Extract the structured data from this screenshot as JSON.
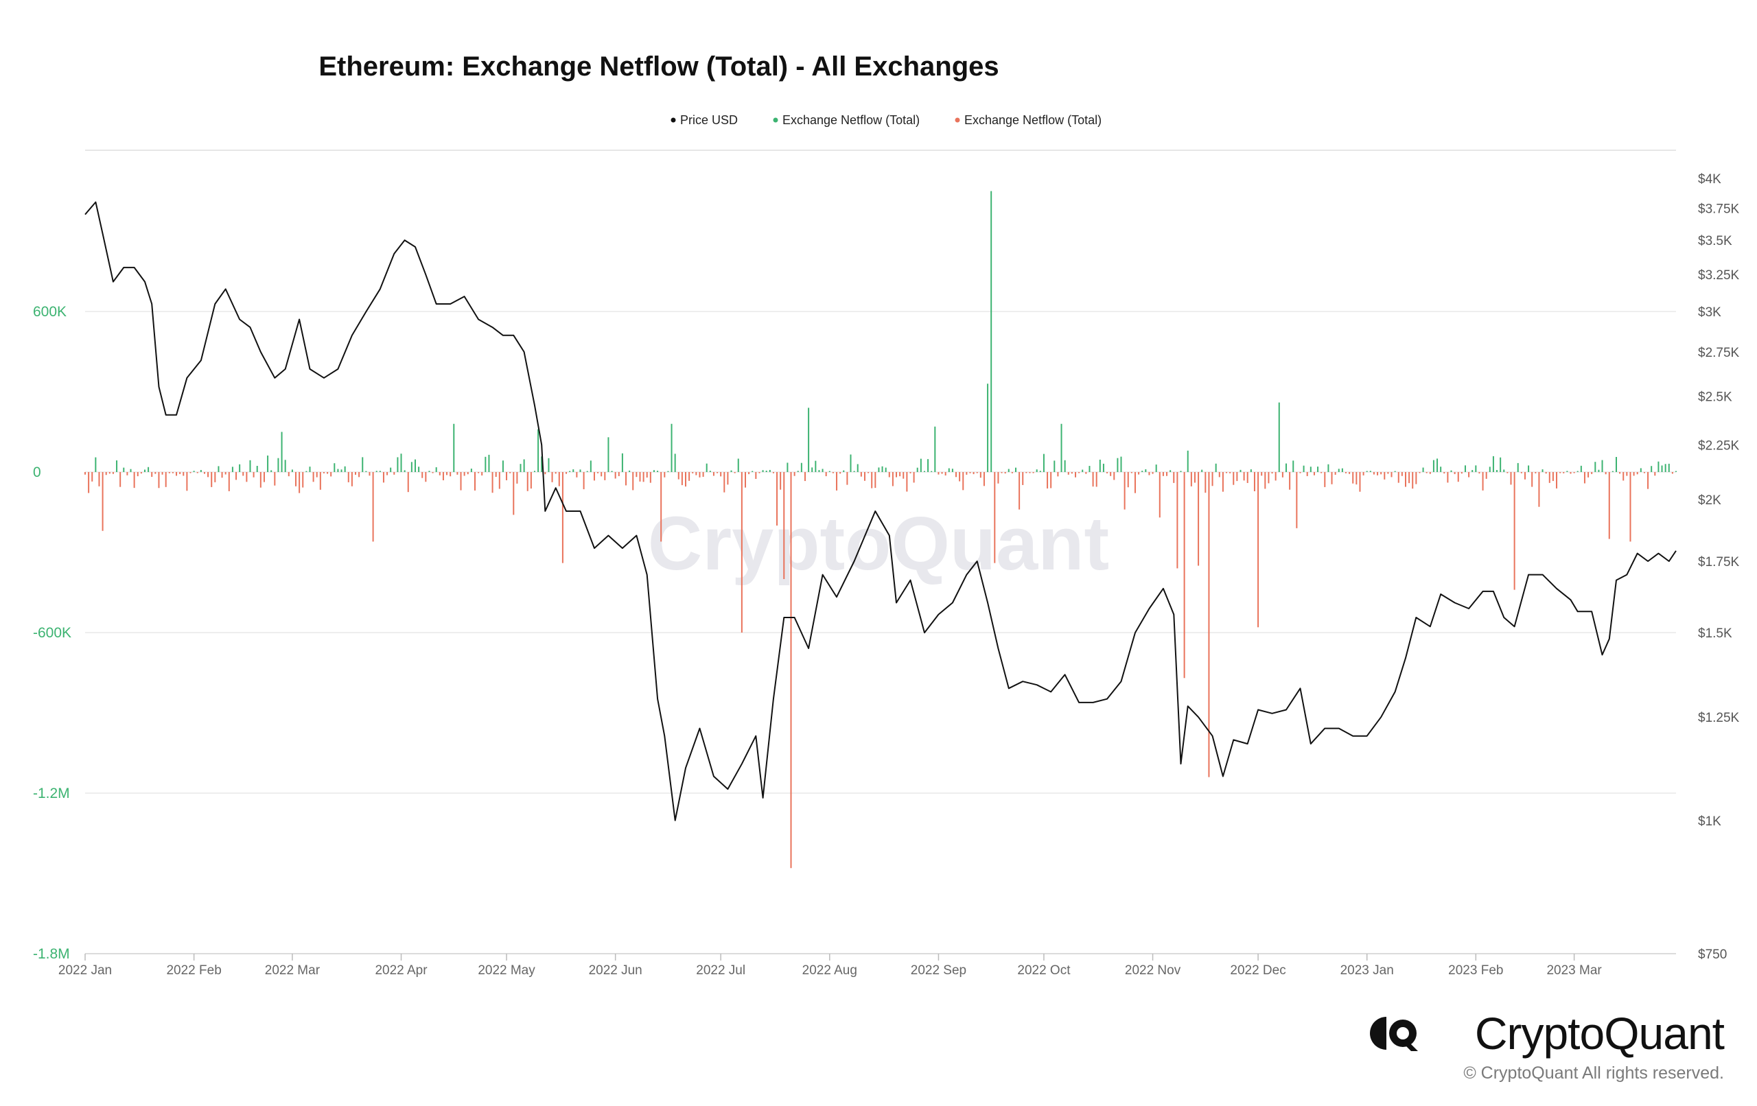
{
  "chart_data": {
    "type": "line+bar",
    "title": "Ethereum: Exchange Netflow (Total) - All Exchanges",
    "legend": [
      {
        "label": "Price USD",
        "color": "#111111"
      },
      {
        "label": "Exchange Netflow (Total)",
        "color": "#3cb371"
      },
      {
        "label": "Exchange Netflow (Total)",
        "color": "#e9735b"
      }
    ],
    "legend_position": "top-center",
    "watermark": "CryptoQuant",
    "x_ticks": [
      "2022 Jan",
      "2022 Feb",
      "2022 Mar",
      "2022 Apr",
      "2022 May",
      "2022 Jun",
      "2022 Jul",
      "2022 Aug",
      "2022 Sep",
      "2022 Oct",
      "2022 Nov",
      "2022 Dec",
      "2023 Jan",
      "2023 Feb",
      "2023 Mar"
    ],
    "x_tick_dates": [
      "2022-01-01",
      "2022-02-01",
      "2022-03-01",
      "2022-04-01",
      "2022-05-01",
      "2022-06-01",
      "2022-07-01",
      "2022-08-01",
      "2022-09-01",
      "2022-10-01",
      "2022-11-01",
      "2022-12-01",
      "2023-01-01",
      "2023-02-01",
      "2023-03-01"
    ],
    "x_range": [
      "2022-01-01",
      "2023-03-30"
    ],
    "left_axis": {
      "ticks": [
        "600K",
        "0",
        "-600K",
        "-1.2M",
        "-1.8M"
      ],
      "tick_values": [
        600000,
        0,
        -600000,
        -1200000,
        -1800000
      ],
      "range": [
        -1800000,
        1200000
      ],
      "color": "#3cb371"
    },
    "right_axis": {
      "scale": "log",
      "ticks": [
        "$4K",
        "$3.75K",
        "$3.5K",
        "$3.25K",
        "$3K",
        "$2.75K",
        "$2.5K",
        "$2.25K",
        "$2K",
        "$1.75K",
        "$1.5K",
        "$1.25K",
        "$1K",
        "$750"
      ],
      "tick_values": [
        4000,
        3750,
        3500,
        3250,
        3000,
        2750,
        2500,
        2250,
        2000,
        1750,
        1500,
        1250,
        1000,
        750
      ],
      "range": [
        750,
        4000
      ]
    },
    "grid": true,
    "price_series": {
      "name": "Price USD",
      "points": [
        [
          "2022-01-01",
          3700
        ],
        [
          "2022-01-04",
          3800
        ],
        [
          "2022-01-06",
          3550
        ],
        [
          "2022-01-09",
          3200
        ],
        [
          "2022-01-12",
          3300
        ],
        [
          "2022-01-15",
          3300
        ],
        [
          "2022-01-18",
          3200
        ],
        [
          "2022-01-20",
          3050
        ],
        [
          "2022-01-22",
          2550
        ],
        [
          "2022-01-24",
          2400
        ],
        [
          "2022-01-27",
          2400
        ],
        [
          "2022-01-30",
          2600
        ],
        [
          "2022-02-03",
          2700
        ],
        [
          "2022-02-07",
          3050
        ],
        [
          "2022-02-10",
          3150
        ],
        [
          "2022-02-14",
          2950
        ],
        [
          "2022-02-17",
          2900
        ],
        [
          "2022-02-20",
          2750
        ],
        [
          "2022-02-24",
          2600
        ],
        [
          "2022-02-27",
          2650
        ],
        [
          "2022-03-03",
          2950
        ],
        [
          "2022-03-06",
          2650
        ],
        [
          "2022-03-10",
          2600
        ],
        [
          "2022-03-14",
          2650
        ],
        [
          "2022-03-18",
          2850
        ],
        [
          "2022-03-22",
          3000
        ],
        [
          "2022-03-26",
          3150
        ],
        [
          "2022-03-30",
          3400
        ],
        [
          "2022-04-02",
          3500
        ],
        [
          "2022-04-05",
          3450
        ],
        [
          "2022-04-08",
          3250
        ],
        [
          "2022-04-11",
          3050
        ],
        [
          "2022-04-15",
          3050
        ],
        [
          "2022-04-19",
          3100
        ],
        [
          "2022-04-23",
          2950
        ],
        [
          "2022-04-27",
          2900
        ],
        [
          "2022-04-30",
          2850
        ],
        [
          "2022-05-03",
          2850
        ],
        [
          "2022-05-06",
          2750
        ],
        [
          "2022-05-09",
          2450
        ],
        [
          "2022-05-11",
          2250
        ],
        [
          "2022-05-12",
          1950
        ],
        [
          "2022-05-15",
          2050
        ],
        [
          "2022-05-18",
          1950
        ],
        [
          "2022-05-22",
          1950
        ],
        [
          "2022-05-26",
          1800
        ],
        [
          "2022-05-30",
          1850
        ],
        [
          "2022-06-03",
          1800
        ],
        [
          "2022-06-07",
          1850
        ],
        [
          "2022-06-10",
          1700
        ],
        [
          "2022-06-13",
          1300
        ],
        [
          "2022-06-15",
          1200
        ],
        [
          "2022-06-18",
          1000
        ],
        [
          "2022-06-21",
          1120
        ],
        [
          "2022-06-25",
          1220
        ],
        [
          "2022-06-29",
          1100
        ],
        [
          "2022-07-03",
          1070
        ],
        [
          "2022-07-07",
          1130
        ],
        [
          "2022-07-11",
          1200
        ],
        [
          "2022-07-13",
          1050
        ],
        [
          "2022-07-16",
          1300
        ],
        [
          "2022-07-19",
          1550
        ],
        [
          "2022-07-22",
          1550
        ],
        [
          "2022-07-26",
          1450
        ],
        [
          "2022-07-30",
          1700
        ],
        [
          "2022-08-03",
          1620
        ],
        [
          "2022-08-08",
          1750
        ],
        [
          "2022-08-14",
          1950
        ],
        [
          "2022-08-18",
          1850
        ],
        [
          "2022-08-20",
          1600
        ],
        [
          "2022-08-24",
          1680
        ],
        [
          "2022-08-28",
          1500
        ],
        [
          "2022-09-01",
          1560
        ],
        [
          "2022-09-05",
          1600
        ],
        [
          "2022-09-09",
          1700
        ],
        [
          "2022-09-12",
          1750
        ],
        [
          "2022-09-15",
          1600
        ],
        [
          "2022-09-18",
          1450
        ],
        [
          "2022-09-21",
          1330
        ],
        [
          "2022-09-25",
          1350
        ],
        [
          "2022-09-29",
          1340
        ],
        [
          "2022-10-03",
          1320
        ],
        [
          "2022-10-07",
          1370
        ],
        [
          "2022-10-11",
          1290
        ],
        [
          "2022-10-15",
          1290
        ],
        [
          "2022-10-19",
          1300
        ],
        [
          "2022-10-23",
          1350
        ],
        [
          "2022-10-27",
          1500
        ],
        [
          "2022-10-31",
          1580
        ],
        [
          "2022-11-04",
          1650
        ],
        [
          "2022-11-07",
          1560
        ],
        [
          "2022-11-09",
          1130
        ],
        [
          "2022-11-11",
          1280
        ],
        [
          "2022-11-14",
          1250
        ],
        [
          "2022-11-18",
          1200
        ],
        [
          "2022-11-21",
          1100
        ],
        [
          "2022-11-24",
          1190
        ],
        [
          "2022-11-28",
          1180
        ],
        [
          "2022-12-01",
          1270
        ],
        [
          "2022-12-05",
          1260
        ],
        [
          "2022-12-09",
          1270
        ],
        [
          "2022-12-13",
          1330
        ],
        [
          "2022-12-16",
          1180
        ],
        [
          "2022-12-20",
          1220
        ],
        [
          "2022-12-24",
          1220
        ],
        [
          "2022-12-28",
          1200
        ],
        [
          "2023-01-01",
          1200
        ],
        [
          "2023-01-05",
          1250
        ],
        [
          "2023-01-09",
          1320
        ],
        [
          "2023-01-12",
          1420
        ],
        [
          "2023-01-15",
          1550
        ],
        [
          "2023-01-19",
          1520
        ],
        [
          "2023-01-22",
          1630
        ],
        [
          "2023-01-26",
          1600
        ],
        [
          "2023-01-30",
          1580
        ],
        [
          "2023-02-03",
          1640
        ],
        [
          "2023-02-06",
          1640
        ],
        [
          "2023-02-09",
          1550
        ],
        [
          "2023-02-12",
          1520
        ],
        [
          "2023-02-16",
          1700
        ],
        [
          "2023-02-20",
          1700
        ],
        [
          "2023-02-24",
          1650
        ],
        [
          "2023-02-28",
          1610
        ],
        [
          "2023-03-02",
          1570
        ],
        [
          "2023-03-06",
          1570
        ],
        [
          "2023-03-09",
          1430
        ],
        [
          "2023-03-11",
          1480
        ],
        [
          "2023-03-13",
          1680
        ],
        [
          "2023-03-16",
          1700
        ],
        [
          "2023-03-19",
          1780
        ],
        [
          "2023-03-22",
          1750
        ],
        [
          "2023-03-25",
          1780
        ],
        [
          "2023-03-28",
          1750
        ],
        [
          "2023-03-30",
          1790
        ]
      ]
    },
    "netflow_series": {
      "name": "Exchange Netflow (Total)",
      "positive_color": "#3cb371",
      "negative_color": "#e9735b",
      "notable_bars": [
        [
          "2022-01-06",
          -220000
        ],
        [
          "2022-02-26",
          150000
        ],
        [
          "2022-03-24",
          -260000
        ],
        [
          "2022-04-16",
          180000
        ],
        [
          "2022-05-03",
          -160000
        ],
        [
          "2022-05-10",
          160000
        ],
        [
          "2022-05-17",
          -340000
        ],
        [
          "2022-05-30",
          130000
        ],
        [
          "2022-06-14",
          -260000
        ],
        [
          "2022-06-17",
          180000
        ],
        [
          "2022-07-07",
          -600000
        ],
        [
          "2022-07-17",
          -200000
        ],
        [
          "2022-07-19",
          -400000
        ],
        [
          "2022-07-21",
          -1480000
        ],
        [
          "2022-07-26",
          240000
        ],
        [
          "2022-08-31",
          170000
        ],
        [
          "2022-09-15",
          330000
        ],
        [
          "2022-09-16",
          1050000
        ],
        [
          "2022-09-17",
          -340000
        ],
        [
          "2022-09-24",
          -140000
        ],
        [
          "2022-10-06",
          180000
        ],
        [
          "2022-10-24",
          -140000
        ],
        [
          "2022-11-03",
          -170000
        ],
        [
          "2022-11-08",
          -360000
        ],
        [
          "2022-11-10",
          -770000
        ],
        [
          "2022-11-11",
          80000
        ],
        [
          "2022-11-14",
          -350000
        ],
        [
          "2022-11-17",
          -1140000
        ],
        [
          "2022-12-01",
          -580000
        ],
        [
          "2022-12-07",
          260000
        ],
        [
          "2022-12-12",
          -210000
        ],
        [
          "2023-02-12",
          -440000
        ],
        [
          "2023-02-19",
          -130000
        ],
        [
          "2023-03-11",
          -250000
        ],
        [
          "2023-03-17",
          -260000
        ]
      ]
    }
  },
  "branding": {
    "wordmark": "CryptoQuant",
    "copyright": "© CryptoQuant All rights reserved."
  }
}
